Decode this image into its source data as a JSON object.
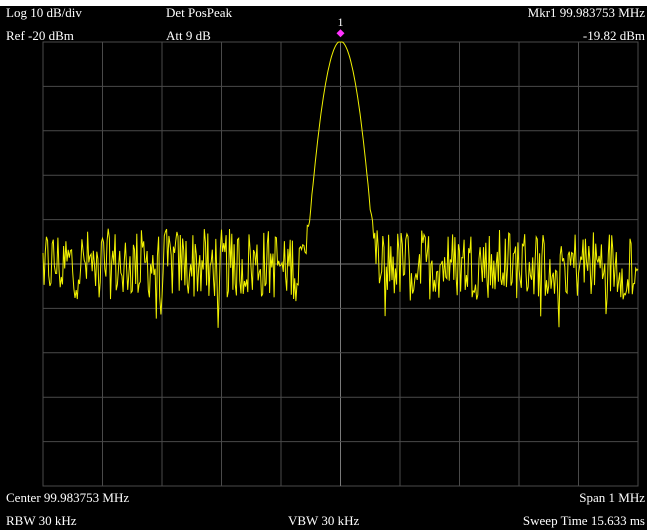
{
  "header": {
    "scale": "Log 10 dB/div",
    "detector": "Det PosPeak",
    "marker_readout": "Mkr1  99.983753 MHz",
    "ref_level": "Ref -20 dBm",
    "attenuation": "Att 9 dB",
    "marker_level": "-19.82 dBm"
  },
  "marker": {
    "label": "1",
    "frequency_mhz": 99.983753,
    "level_dbm": -19.82
  },
  "footer": {
    "center": "Center 99.983753 MHz",
    "span": "Span 1 MHz",
    "rbw": "RBW 30 kHz",
    "vbw": "VBW 30 kHz",
    "sweep": "Sweep Time 15.633 ms"
  },
  "colors": {
    "trace": "#f2f200",
    "marker": "#ff33ff",
    "grid": "#4a4a4a",
    "background": "#000000",
    "text": "#ffffff"
  },
  "chart_data": {
    "type": "line",
    "x_range_mhz": [
      99.483753,
      100.483753
    ],
    "y_range_dbm": [
      -120,
      -20
    ],
    "center_mhz": 99.983753,
    "noise_floor_dbm": -70,
    "peak_dbm": -19.82,
    "divisions": {
      "x": 10,
      "y": 10
    }
  }
}
